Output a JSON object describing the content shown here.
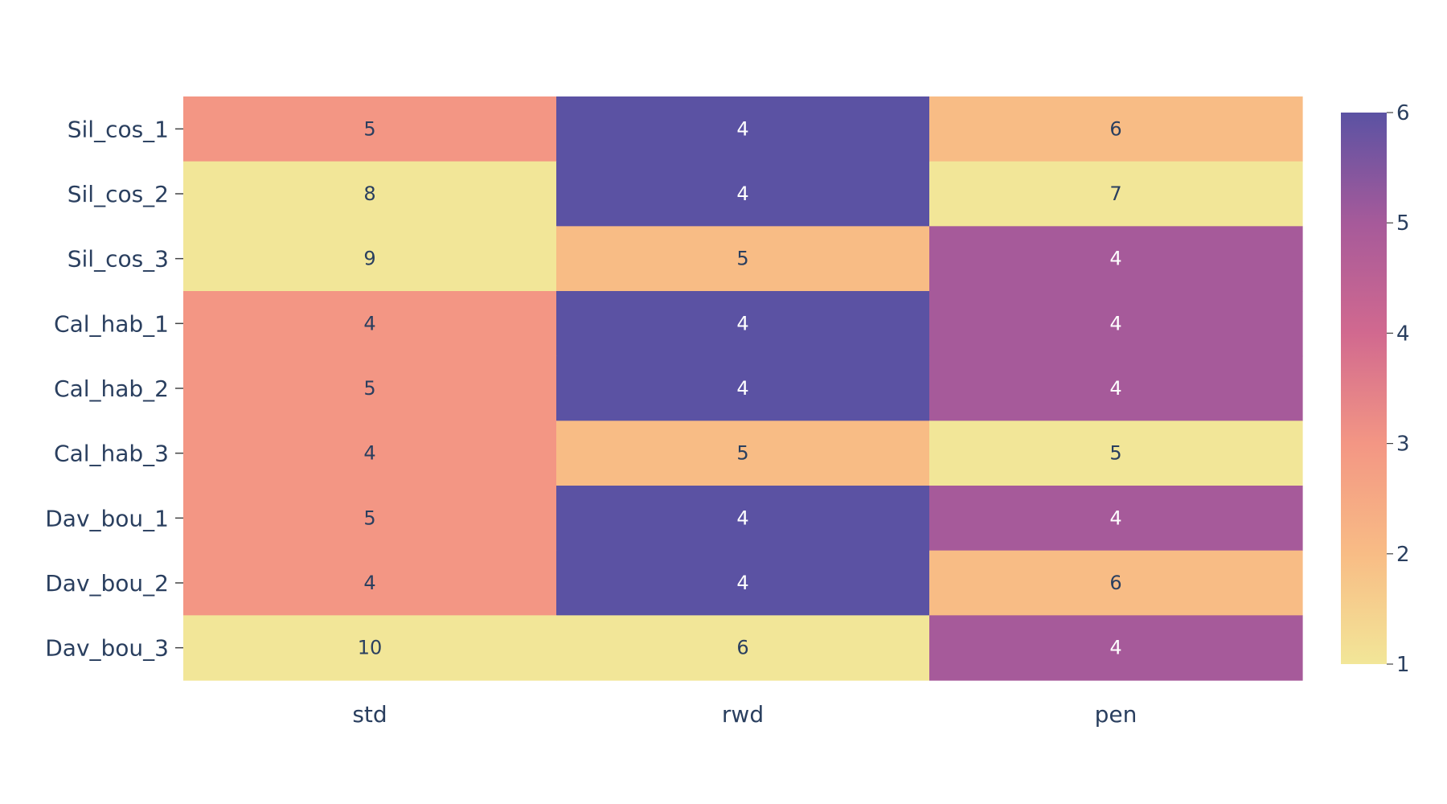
{
  "chart_data": {
    "type": "heatmap",
    "title": "",
    "xlabel": "",
    "ylabel": "",
    "x_categories": [
      "std",
      "rwd",
      "pen"
    ],
    "y_categories": [
      "Sil_cos_1",
      "Sil_cos_2",
      "Sil_cos_3",
      "Cal_hab_1",
      "Cal_hab_2",
      "Cal_hab_3",
      "Dav_bou_1",
      "Dav_bou_2",
      "Dav_bou_3"
    ],
    "cells": [
      {
        "x": "std",
        "y": "Sil_cos_1",
        "label": "5",
        "color_value": 3
      },
      {
        "x": "rwd",
        "y": "Sil_cos_1",
        "label": "4",
        "color_value": 6
      },
      {
        "x": "pen",
        "y": "Sil_cos_1",
        "label": "6",
        "color_value": 2
      },
      {
        "x": "std",
        "y": "Sil_cos_2",
        "label": "8",
        "color_value": 1
      },
      {
        "x": "rwd",
        "y": "Sil_cos_2",
        "label": "4",
        "color_value": 6
      },
      {
        "x": "pen",
        "y": "Sil_cos_2",
        "label": "7",
        "color_value": 1
      },
      {
        "x": "std",
        "y": "Sil_cos_3",
        "label": "9",
        "color_value": 1
      },
      {
        "x": "rwd",
        "y": "Sil_cos_3",
        "label": "5",
        "color_value": 2
      },
      {
        "x": "pen",
        "y": "Sil_cos_3",
        "label": "4",
        "color_value": 5
      },
      {
        "x": "std",
        "y": "Cal_hab_1",
        "label": "4",
        "color_value": 3
      },
      {
        "x": "rwd",
        "y": "Cal_hab_1",
        "label": "4",
        "color_value": 6
      },
      {
        "x": "pen",
        "y": "Cal_hab_1",
        "label": "4",
        "color_value": 5
      },
      {
        "x": "std",
        "y": "Cal_hab_2",
        "label": "5",
        "color_value": 3
      },
      {
        "x": "rwd",
        "y": "Cal_hab_2",
        "label": "4",
        "color_value": 6
      },
      {
        "x": "pen",
        "y": "Cal_hab_2",
        "label": "4",
        "color_value": 5
      },
      {
        "x": "std",
        "y": "Cal_hab_3",
        "label": "4",
        "color_value": 3
      },
      {
        "x": "rwd",
        "y": "Cal_hab_3",
        "label": "5",
        "color_value": 2
      },
      {
        "x": "pen",
        "y": "Cal_hab_3",
        "label": "5",
        "color_value": 1
      },
      {
        "x": "std",
        "y": "Dav_bou_1",
        "label": "5",
        "color_value": 3
      },
      {
        "x": "rwd",
        "y": "Dav_bou_1",
        "label": "4",
        "color_value": 6
      },
      {
        "x": "pen",
        "y": "Dav_bou_1",
        "label": "4",
        "color_value": 5
      },
      {
        "x": "std",
        "y": "Dav_bou_2",
        "label": "4",
        "color_value": 3
      },
      {
        "x": "rwd",
        "y": "Dav_bou_2",
        "label": "4",
        "color_value": 6
      },
      {
        "x": "pen",
        "y": "Dav_bou_2",
        "label": "6",
        "color_value": 2
      },
      {
        "x": "std",
        "y": "Dav_bou_3",
        "label": "10",
        "color_value": 1
      },
      {
        "x": "rwd",
        "y": "Dav_bou_3",
        "label": "6",
        "color_value": 1
      },
      {
        "x": "pen",
        "y": "Dav_bou_3",
        "label": "4",
        "color_value": 5
      }
    ],
    "colorscale": {
      "min": 1,
      "max": 6,
      "ticks": [
        "1",
        "2",
        "3",
        "4",
        "5",
        "6"
      ],
      "stops": [
        "#f2e698",
        "#f8bc85",
        "#f39684",
        "#d1698f",
        "#a65a9a",
        "#5b52a3"
      ]
    },
    "legend": "colorbar right",
    "grid": false
  }
}
